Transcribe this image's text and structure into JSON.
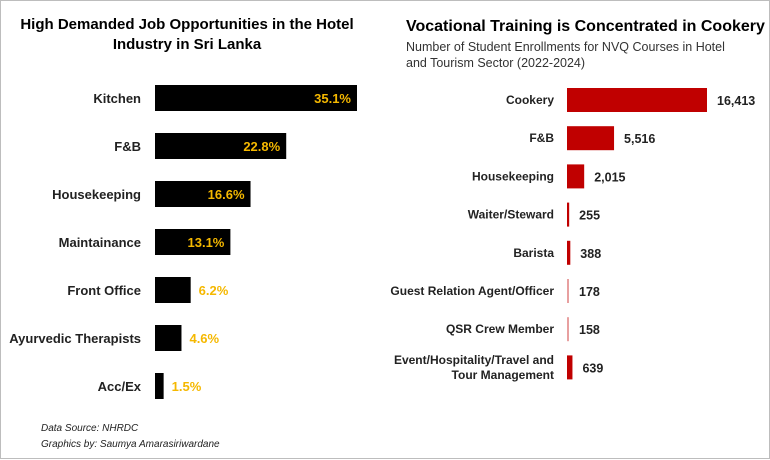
{
  "left_title": "High Demanded Job Opportunities in the Hotel Industry in Sri Lanka",
  "right_title": "Vocational Training is Concentrated in Cookery",
  "right_subtitle": "Number of Student Enrollments for NVQ Courses in Hotel and Tourism Sector (2022-2024)",
  "footer": {
    "source": "Data Source: NHRDC",
    "credit": "Graphics by: Saumya Amarasiriwardane"
  },
  "colors": {
    "left_bar": "#000000",
    "left_label": "#f5b800",
    "right_bar": "#c00000",
    "right_bar_light": "#e8a0a0"
  },
  "chart_data": [
    {
      "type": "bar",
      "orientation": "horizontal",
      "title": "High Demanded Job Opportunities in the Hotel Industry in Sri Lanka",
      "categories": [
        "Kitchen",
        "F&B",
        "Housekeeping",
        "Maintainance",
        "Front Office",
        "Ayurvedic Therapists",
        "Acc/Ex"
      ],
      "values": [
        35.1,
        22.8,
        16.6,
        13.1,
        6.2,
        4.6,
        1.5
      ],
      "labels": [
        "35.1%",
        "22.8%",
        "16.6%",
        "13.1%",
        "6.2%",
        "4.6%",
        "1.5%"
      ],
      "unit": "%",
      "xlim": [
        0,
        35.1
      ],
      "grid": false,
      "legend": "none"
    },
    {
      "type": "bar",
      "orientation": "horizontal",
      "title": "Vocational Training is Concentrated in Cookery",
      "subtitle": "Number of Student Enrollments for NVQ Courses in Hotel and Tourism Sector (2022-2024)",
      "categories": [
        "Cookery",
        "F&B",
        "Housekeeping",
        "Waiter/Steward",
        "Barista",
        "Guest Relation Agent/Officer",
        "QSR Crew Member",
        "Event/Hospitality/Travel and Tour Management"
      ],
      "category_lines": [
        [
          "Cookery"
        ],
        [
          "F&B"
        ],
        [
          "Housekeeping"
        ],
        [
          "Waiter/Steward"
        ],
        [
          "Barista"
        ],
        [
          "Guest Relation Agent/Officer"
        ],
        [
          "QSR Crew Member"
        ],
        [
          "Event/Hospitality/Travel and",
          "Tour Management"
        ]
      ],
      "values": [
        16413,
        5516,
        2015,
        255,
        388,
        178,
        158,
        639
      ],
      "labels": [
        "16,413",
        "5,516",
        "2,015",
        "255",
        "388",
        "178",
        "158",
        "639"
      ],
      "xlim": [
        0,
        16413
      ],
      "grid": false,
      "legend": "none"
    }
  ]
}
